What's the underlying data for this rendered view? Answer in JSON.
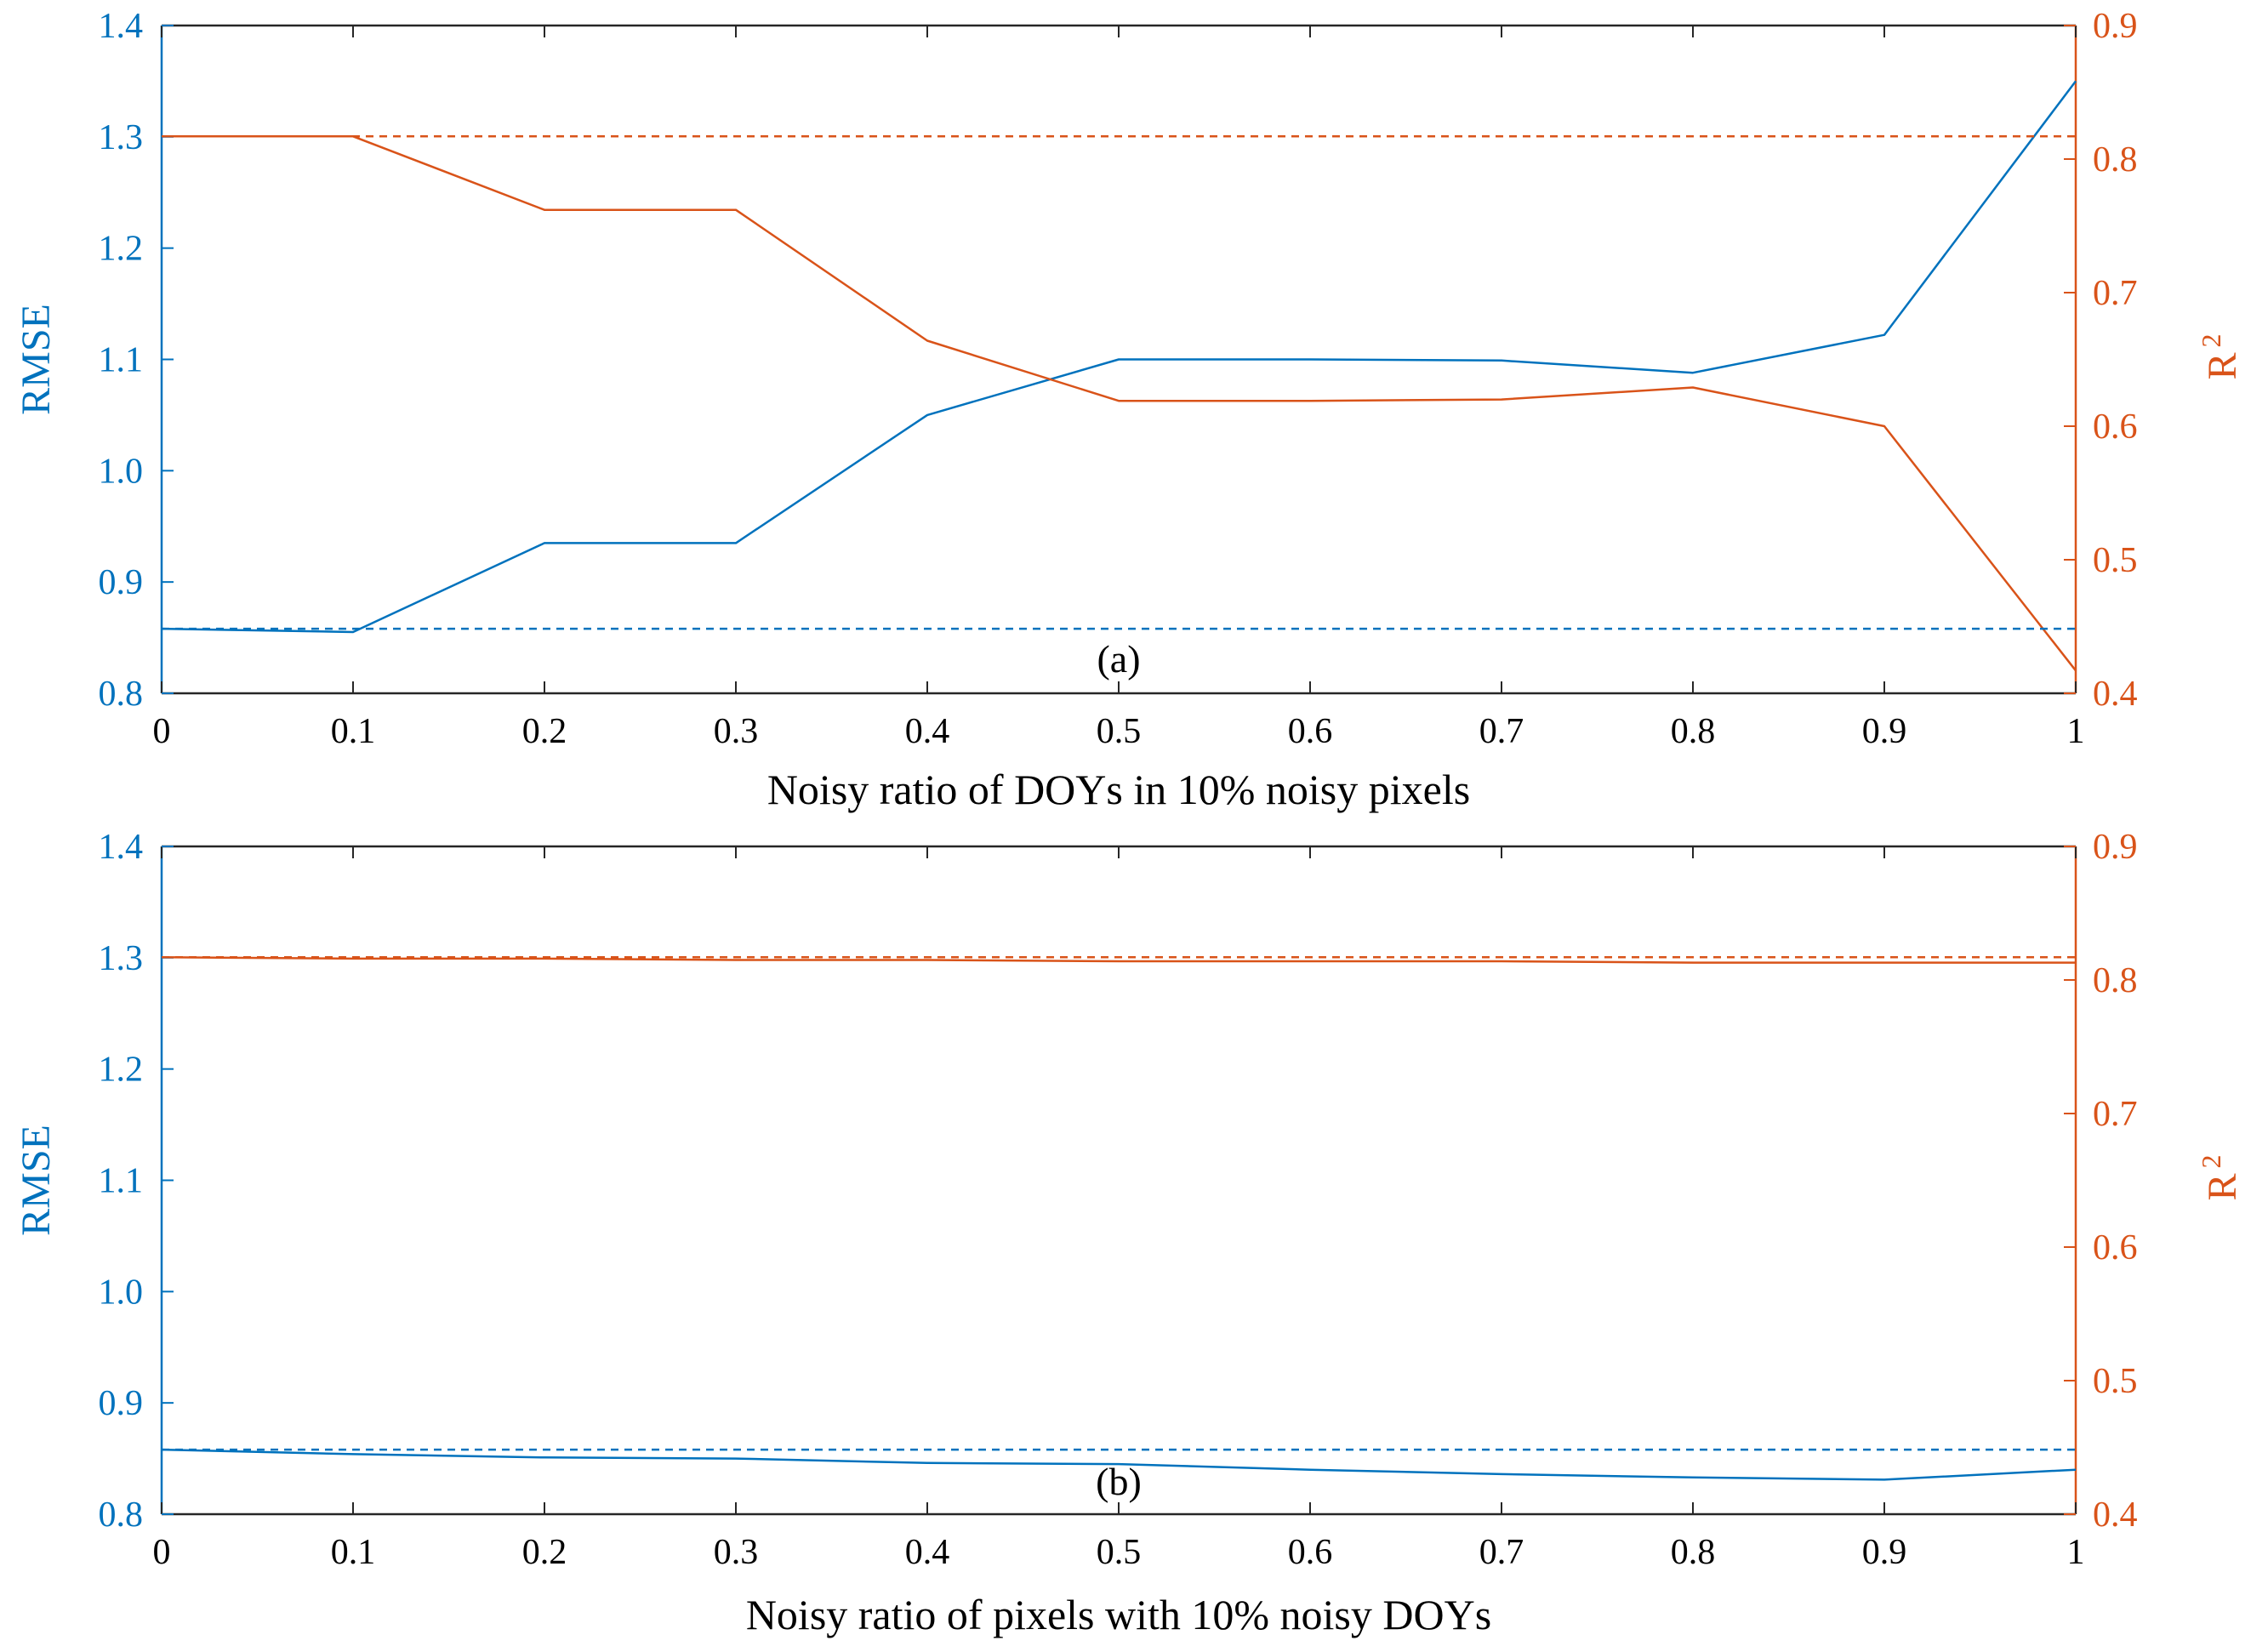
{
  "chart_data": [
    {
      "type": "line",
      "panel_label": "(a)",
      "xlabel": "Noisy ratio of DOYs in 10% noisy pixels",
      "ylabel_left": "RMSE",
      "ylabel_right": "R",
      "ylabel_right_superscript": "2",
      "x": [
        0,
        0.1,
        0.2,
        0.3,
        0.4,
        0.5,
        0.6,
        0.7,
        0.8,
        0.9,
        1
      ],
      "x_tick_labels": [
        "0",
        "0.1",
        "0.2",
        "0.3",
        "0.4",
        "0.5",
        "0.6",
        "0.7",
        "0.8",
        "0.9",
        "1"
      ],
      "ylim_left": [
        0.8,
        1.4
      ],
      "ylim_right": [
        0.4,
        0.9
      ],
      "yticks_left": [
        "0.8",
        "0.9",
        "1.0",
        "1.1",
        "1.2",
        "1.3",
        "1.4"
      ],
      "yticks_right": [
        "0.4",
        "0.5",
        "0.6",
        "0.7",
        "0.8",
        "0.9"
      ],
      "series": [
        {
          "name": "RMSE",
          "axis": "left",
          "style": "solid",
          "color": "#0072BD",
          "values": [
            0.858,
            0.855,
            0.935,
            0.935,
            1.05,
            1.1,
            1.1,
            1.099,
            1.088,
            1.122,
            1.35
          ]
        },
        {
          "name": "R2",
          "axis": "right",
          "style": "solid",
          "color": "#D95319",
          "values": [
            0.817,
            0.817,
            0.762,
            0.762,
            0.664,
            0.619,
            0.619,
            0.62,
            0.629,
            0.6,
            0.417
          ]
        },
        {
          "name": "RMSE baseline",
          "axis": "left",
          "style": "dashed",
          "color": "#0072BD",
          "values": [
            0.858,
            0.858,
            0.858,
            0.858,
            0.858,
            0.858,
            0.858,
            0.858,
            0.858,
            0.858,
            0.858
          ]
        },
        {
          "name": "R2 baseline",
          "axis": "right",
          "style": "dashed",
          "color": "#D95319",
          "values": [
            0.817,
            0.817,
            0.817,
            0.817,
            0.817,
            0.817,
            0.817,
            0.817,
            0.817,
            0.817,
            0.817
          ]
        }
      ]
    },
    {
      "type": "line",
      "panel_label": "(b)",
      "xlabel": "Noisy ratio of pixels with 10% noisy DOYs",
      "ylabel_left": "RMSE",
      "ylabel_right": "R",
      "ylabel_right_superscript": "2",
      "x": [
        0,
        0.1,
        0.2,
        0.3,
        0.4,
        0.5,
        0.6,
        0.7,
        0.8,
        0.9,
        1
      ],
      "x_tick_labels": [
        "0",
        "0.1",
        "0.2",
        "0.3",
        "0.4",
        "0.5",
        "0.6",
        "0.7",
        "0.8",
        "0.9",
        "1"
      ],
      "ylim_left": [
        0.8,
        1.4
      ],
      "ylim_right": [
        0.4,
        0.9
      ],
      "yticks_left": [
        "0.8",
        "0.9",
        "1.0",
        "1.1",
        "1.2",
        "1.3",
        "1.4"
      ],
      "yticks_right": [
        "0.4",
        "0.5",
        "0.6",
        "0.7",
        "0.8",
        "0.9"
      ],
      "series": [
        {
          "name": "RMSE",
          "axis": "left",
          "style": "solid",
          "color": "#0072BD",
          "values": [
            0.858,
            0.854,
            0.851,
            0.85,
            0.846,
            0.845,
            0.84,
            0.836,
            0.833,
            0.831,
            0.84
          ]
        },
        {
          "name": "R2",
          "axis": "right",
          "style": "solid",
          "color": "#D95319",
          "values": [
            0.817,
            0.816,
            0.816,
            0.815,
            0.815,
            0.814,
            0.814,
            0.814,
            0.813,
            0.813,
            0.813
          ]
        },
        {
          "name": "RMSE baseline",
          "axis": "left",
          "style": "dashed",
          "color": "#0072BD",
          "values": [
            0.858,
            0.858,
            0.858,
            0.858,
            0.858,
            0.858,
            0.858,
            0.858,
            0.858,
            0.858,
            0.858
          ]
        },
        {
          "name": "R2 baseline",
          "axis": "right",
          "style": "dashed",
          "color": "#D95319",
          "values": [
            0.817,
            0.817,
            0.817,
            0.817,
            0.817,
            0.817,
            0.817,
            0.817,
            0.817,
            0.817,
            0.817
          ]
        }
      ]
    }
  ],
  "colors": {
    "rmse": "#0072BD",
    "r2": "#D95319",
    "axis": "#262626",
    "text": "#000000"
  }
}
